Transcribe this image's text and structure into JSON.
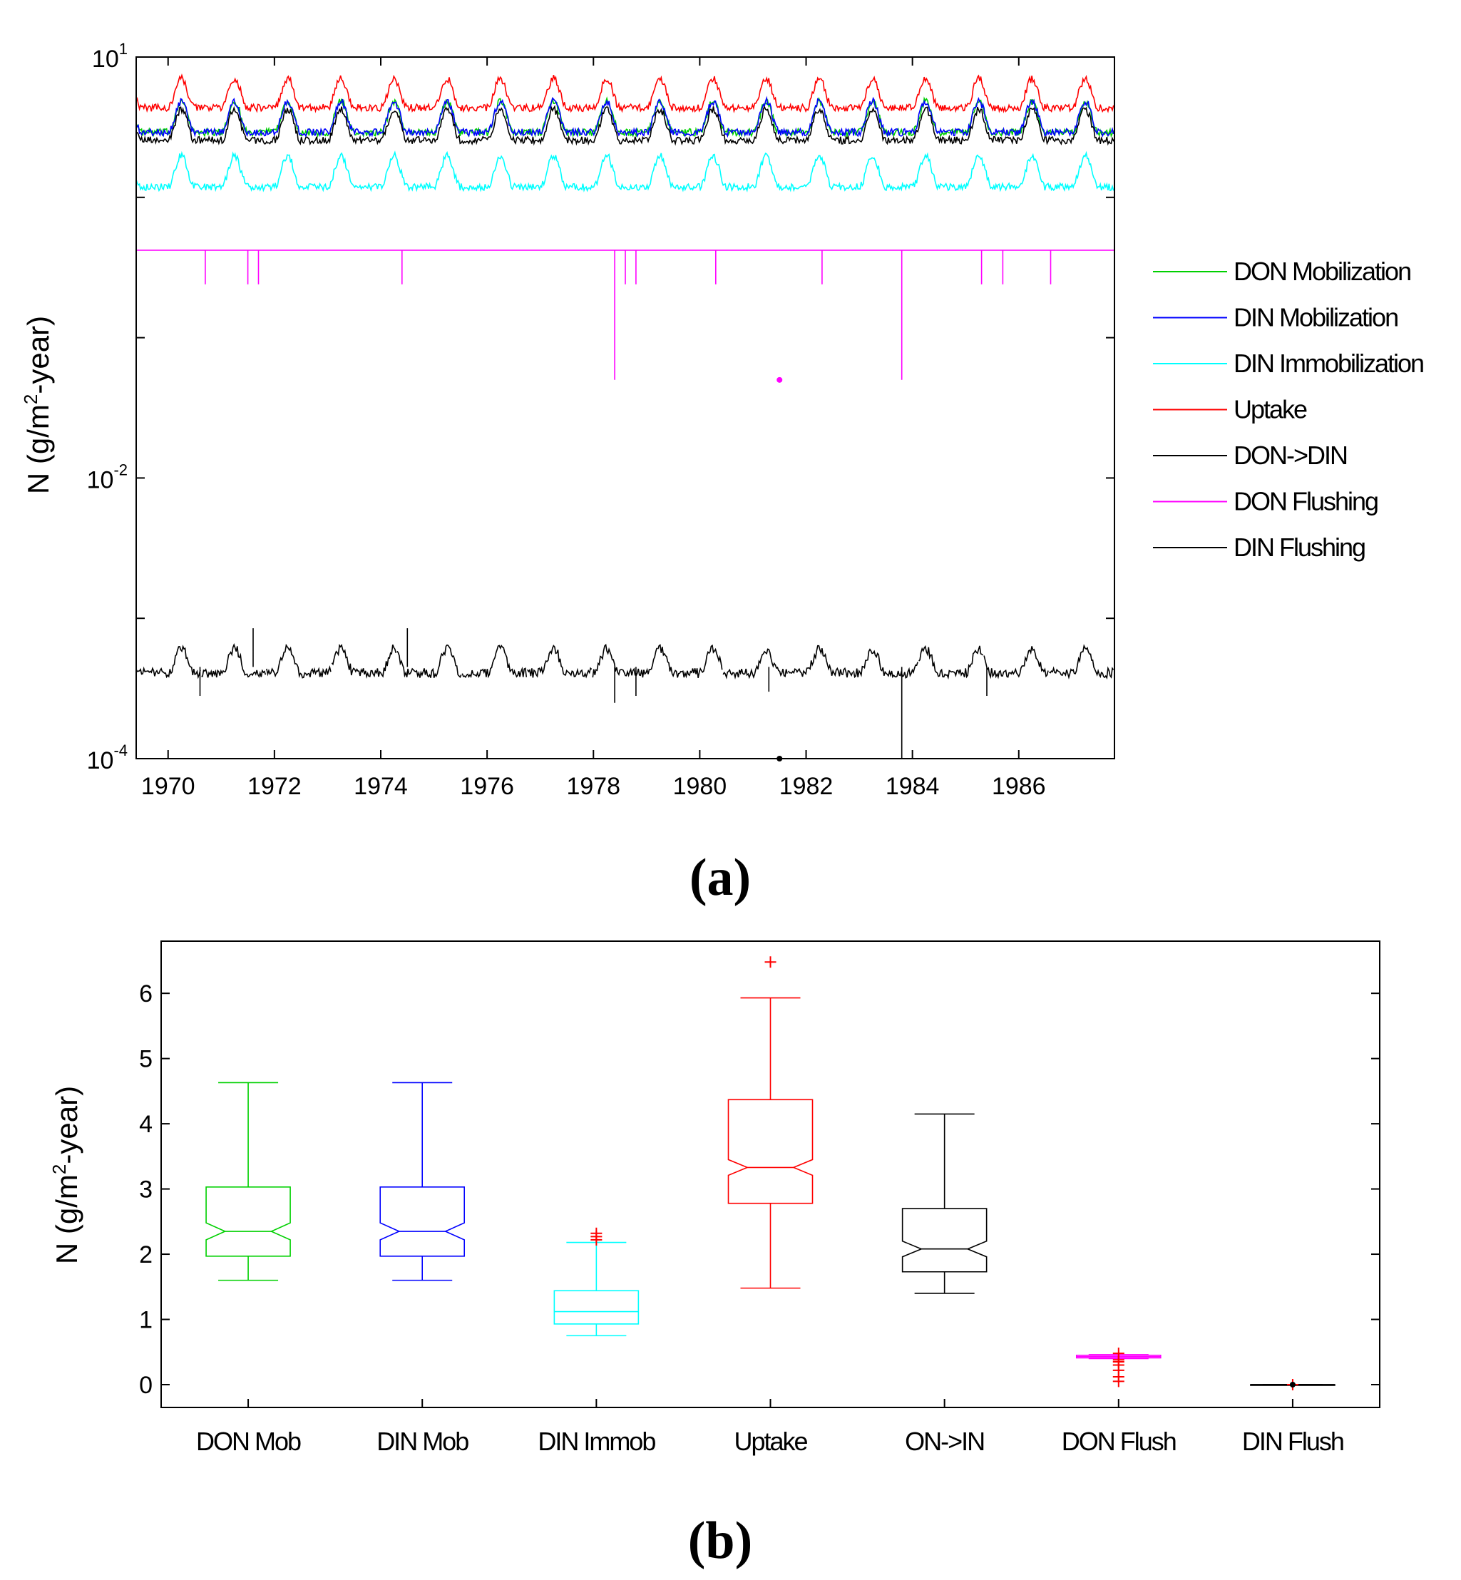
{
  "panel_a_label": "(a)",
  "panel_b_label": "(b)",
  "chart_data": [
    {
      "type": "line",
      "panel": "a",
      "title": "",
      "xlabel": "",
      "ylabel": "N (g/m2-year)",
      "ylabel_parts": {
        "main": "N (g/m",
        "sup": "2",
        "tail": "-year)"
      },
      "yscale": "log",
      "ylim": [
        0.0001,
        10
      ],
      "xlim": [
        1969.4,
        1987.8
      ],
      "x_ticks": [
        1970,
        1972,
        1974,
        1976,
        1978,
        1980,
        1982,
        1984,
        1986
      ],
      "x_tick_labels": [
        "1970",
        "1972",
        "1974",
        "1976",
        "1978",
        "1980",
        "1982",
        "1984",
        "1986"
      ],
      "y_tick_labels": [
        {
          "base": "10",
          "exp": "1",
          "value": 10
        },
        {
          "base": "10",
          "exp": "-2",
          "value": 0.01
        },
        {
          "base": "10",
          "exp": "-4",
          "value": 0.0001
        }
      ],
      "legend_position": "right",
      "series": [
        {
          "name": "DON Mobilization",
          "color": "#00d000",
          "base": 3.3,
          "amp": 0.32,
          "noise": 0.06
        },
        {
          "name": "DIN Mobilization",
          "color": "#0000ff",
          "base": 3.3,
          "amp": 0.32,
          "noise": 0.06
        },
        {
          "name": "DIN Immobilization",
          "color": "#00ffff",
          "base": 1.35,
          "amp": 0.32,
          "noise": 0.06
        },
        {
          "name": "Uptake",
          "color": "#ff0000",
          "base": 4.9,
          "amp": 0.3,
          "noise": 0.06
        },
        {
          "name": "DON->DIN",
          "color": "#000000",
          "base": 2.9,
          "amp": 0.32,
          "noise": 0.06
        },
        {
          "name": "DON Flushing",
          "color": "#ff00ff",
          "base": 0.42,
          "amp": 0.0,
          "noise": 0.0,
          "dips": [
            [
              1970.7,
              0.24
            ],
            [
              1971.5,
              0.24
            ],
            [
              1971.7,
              0.24
            ],
            [
              1974.4,
              0.24
            ],
            [
              1978.4,
              0.05
            ],
            [
              1978.6,
              0.24
            ],
            [
              1978.8,
              0.24
            ],
            [
              1980.3,
              0.24
            ],
            [
              1982.3,
              0.24
            ],
            [
              1983.8,
              0.05
            ],
            [
              1985.3,
              0.24
            ],
            [
              1985.7,
              0.24
            ],
            [
              1986.6,
              0.24
            ]
          ],
          "outlier": [
            1981.5,
            0.05
          ]
        },
        {
          "name": "DIN Flushing",
          "color": "#000000",
          "base": 0.00045,
          "amp": 0.25,
          "noise": 0.08,
          "spikes": [
            [
              1970.6,
              0.00028
            ],
            [
              1971.6,
              0.00085
            ],
            [
              1974.5,
              0.00085
            ],
            [
              1978.4,
              0.00025
            ],
            [
              1978.8,
              0.00028
            ],
            [
              1981.3,
              0.0003
            ],
            [
              1983.8,
              0.0001
            ],
            [
              1985.4,
              0.00028
            ]
          ],
          "outlier": [
            1981.5,
            0.0001
          ]
        }
      ]
    },
    {
      "type": "box",
      "panel": "b",
      "title": "",
      "xlabel": "",
      "ylabel": "N (g/m2-year)",
      "ylabel_parts": {
        "main": "N (g/m",
        "sup": "2",
        "tail": "-year)"
      },
      "ylim": [
        -0.35,
        6.8
      ],
      "y_ticks": [
        0,
        1,
        2,
        3,
        4,
        5,
        6
      ],
      "y_tick_labels": [
        "0",
        "1",
        "2",
        "3",
        "4",
        "5",
        "6"
      ],
      "categories": [
        "DON Mob",
        "DIN Mob",
        "DIN Immob",
        "Uptake",
        "ON->IN",
        "DON Flush",
        "DIN Flush"
      ],
      "boxes": [
        {
          "name": "DON Mob",
          "color": "#00d000",
          "min": 1.6,
          "q1": 1.97,
          "median": 2.35,
          "q3": 3.03,
          "max": 4.63,
          "notch": 0.13,
          "outliers": []
        },
        {
          "name": "DIN Mob",
          "color": "#0000ff",
          "min": 1.6,
          "q1": 1.97,
          "median": 2.35,
          "q3": 3.03,
          "max": 4.63,
          "notch": 0.13,
          "outliers": []
        },
        {
          "name": "DIN Immob",
          "color": "#00ffff",
          "min": 0.75,
          "q1": 0.93,
          "median": 1.12,
          "q3": 1.44,
          "max": 2.18,
          "notch": 0.0,
          "outliers": [
            2.22,
            2.27,
            2.32
          ]
        },
        {
          "name": "Uptake",
          "color": "#ff0000",
          "min": 1.48,
          "q1": 2.78,
          "median": 3.33,
          "q3": 4.37,
          "max": 5.93,
          "notch": 0.12,
          "outliers": [
            6.48
          ]
        },
        {
          "name": "ON->IN",
          "color": "#000000",
          "min": 1.4,
          "q1": 1.73,
          "median": 2.08,
          "q3": 2.7,
          "max": 4.15,
          "notch": 0.12,
          "outliers": []
        },
        {
          "name": "DON Flush",
          "color": "#ff00ff",
          "min": 0.4,
          "q1": 0.41,
          "median": 0.43,
          "q3": 0.45,
          "max": 0.46,
          "notch": 0.0,
          "outliers": [
            0.48,
            0.38,
            0.35,
            0.3,
            0.22,
            0.12,
            0.05
          ]
        },
        {
          "name": "DIN Flush",
          "color": "#000000",
          "min": 0.0,
          "q1": 0.0,
          "median": 0.0,
          "q3": 0.0,
          "max": 0.0,
          "notch": 0.0,
          "outliers": [
            0.0
          ]
        }
      ]
    }
  ]
}
